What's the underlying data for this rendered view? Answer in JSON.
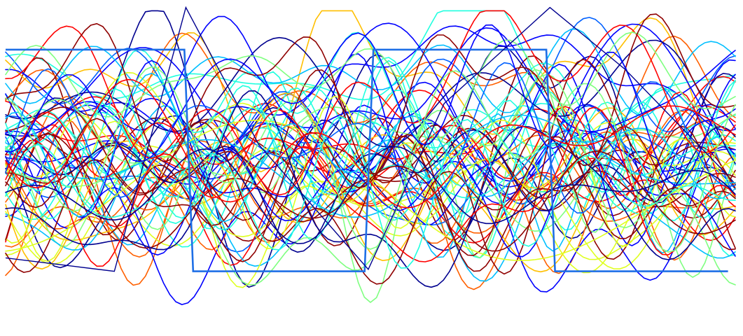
{
  "chart_data": {
    "type": "line",
    "title": "",
    "xlabel": "",
    "ylabel": "",
    "xlim": [
      0,
      1
    ],
    "ylim": [
      0,
      1
    ],
    "grid": false,
    "legend": "none",
    "colormap": "jet",
    "trace_count": 70,
    "reference_series": [
      {
        "kind": "square-wave",
        "color": "#1e6fe6",
        "x": [
          0.0,
          0.245,
          0.257,
          0.492,
          0.504,
          0.741,
          0.753,
          0.99
        ],
        "y": [
          0.862,
          0.862,
          0.188,
          0.188,
          0.862,
          0.862,
          0.188,
          0.188
        ]
      },
      {
        "kind": "triangle-wave",
        "color": "#00008f",
        "x": [
          0.0,
          0.149,
          0.247,
          0.347,
          0.497,
          0.601,
          0.746,
          0.849,
          0.99
        ],
        "y": [
          0.229,
          0.188,
          0.99,
          0.573,
          0.194,
          0.698,
          0.99,
          0.802,
          0.479
        ]
      }
    ]
  },
  "palette": [
    "#00008f",
    "#0000ff",
    "#0060ff",
    "#00bfff",
    "#20ffdf",
    "#7fff80",
    "#dfff20",
    "#ffbf00",
    "#ff6000",
    "#ff0000",
    "#8f0000"
  ]
}
